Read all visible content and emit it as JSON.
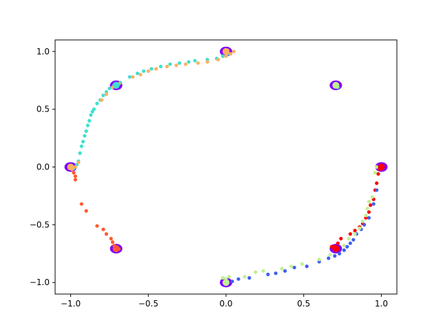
{
  "chart_data": {
    "type": "scatter",
    "title": "",
    "xlabel": "",
    "ylabel": "",
    "xlim": [
      -1.1,
      1.1
    ],
    "ylim": [
      -1.1,
      1.1
    ],
    "grid": false,
    "legend": "none",
    "x_ticks": [
      -1.0,
      -0.5,
      0.0,
      0.5,
      1.0
    ],
    "y_ticks": [
      -1.0,
      -0.5,
      0.0,
      0.5,
      1.0
    ],
    "x_tick_labels": [
      "−1.0",
      "−0.5",
      "0.0",
      "0.5",
      "1.0"
    ],
    "y_tick_labels": [
      "−1.0",
      "−0.5",
      "0.0",
      "0.5",
      "1.0"
    ],
    "clusters": [
      {
        "color": "#8000ff",
        "points": [
          [
            -1.0,
            0.0
          ],
          [
            -0.707,
            0.707
          ],
          [
            0.0,
            1.0
          ],
          [
            0.707,
            0.707
          ],
          [
            1.0,
            0.0
          ],
          [
            0.707,
            -0.707
          ],
          [
            0.0,
            -1.0
          ],
          [
            -0.707,
            -0.707
          ]
        ]
      }
    ],
    "series": [
      {
        "color": "#40e0d0",
        "points": [
          [
            -0.98,
            -0.01
          ],
          [
            -0.96,
            0.02
          ],
          [
            -0.95,
            0.05
          ],
          [
            -0.94,
            0.12
          ],
          [
            -0.93,
            0.18
          ],
          [
            -0.92,
            0.22
          ],
          [
            -0.91,
            0.27
          ],
          [
            -0.9,
            0.31
          ],
          [
            -0.89,
            0.36
          ],
          [
            -0.88,
            0.4
          ],
          [
            -0.87,
            0.45
          ],
          [
            -0.86,
            0.48
          ],
          [
            -0.85,
            0.5
          ],
          [
            -0.83,
            0.55
          ],
          [
            -0.81,
            0.58
          ],
          [
            -0.79,
            0.62
          ],
          [
            -0.77,
            0.65
          ],
          [
            -0.75,
            0.68
          ],
          [
            -0.72,
            0.71
          ],
          [
            -0.68,
            0.73
          ],
          [
            -0.62,
            0.78
          ],
          [
            -0.57,
            0.81
          ],
          [
            -0.53,
            0.83
          ],
          [
            -0.48,
            0.85
          ],
          [
            -0.42,
            0.87
          ],
          [
            -0.36,
            0.89
          ],
          [
            -0.3,
            0.9
          ],
          [
            -0.24,
            0.91
          ],
          [
            -0.2,
            0.92
          ],
          [
            -0.12,
            0.93
          ],
          [
            -0.06,
            0.94
          ],
          [
            -0.02,
            0.96
          ],
          [
            0.01,
            0.98
          ],
          [
            0.71,
            0.7
          ],
          [
            0.7,
            0.71
          ],
          [
            0.72,
            0.69
          ]
        ]
      },
      {
        "color": "#ffb060",
        "points": [
          [
            -0.99,
            -0.02
          ],
          [
            -0.97,
            0.0
          ],
          [
            -0.95,
            0.04
          ],
          [
            -0.8,
            0.58
          ],
          [
            -0.77,
            0.63
          ],
          [
            -0.73,
            0.69
          ],
          [
            -0.69,
            0.72
          ],
          [
            -0.6,
            0.78
          ],
          [
            -0.55,
            0.8
          ],
          [
            -0.5,
            0.83
          ],
          [
            -0.45,
            0.85
          ],
          [
            -0.38,
            0.87
          ],
          [
            -0.32,
            0.88
          ],
          [
            -0.26,
            0.89
          ],
          [
            -0.18,
            0.9
          ],
          [
            -0.12,
            0.91
          ],
          [
            -0.05,
            0.93
          ],
          [
            0.0,
            0.96
          ],
          [
            0.03,
            0.98
          ],
          [
            0.05,
            1.0
          ],
          [
            0.01,
            1.01
          ]
        ]
      },
      {
        "color": "#ff5a30",
        "points": [
          [
            -0.98,
            -0.05
          ],
          [
            -0.97,
            -0.08
          ],
          [
            -0.97,
            -0.11
          ],
          [
            -0.93,
            -0.32
          ],
          [
            -0.9,
            -0.38
          ],
          [
            -0.83,
            -0.51
          ],
          [
            -0.79,
            -0.54
          ],
          [
            -0.77,
            -0.58
          ],
          [
            -0.74,
            -0.62
          ],
          [
            -0.73,
            -0.65
          ],
          [
            -0.72,
            -0.68
          ],
          [
            -0.7,
            -0.7
          ],
          [
            -0.71,
            -0.72
          ],
          [
            -0.69,
            -0.71
          ]
        ]
      },
      {
        "color": "#ff0000",
        "points": [
          [
            0.68,
            -0.69
          ],
          [
            0.7,
            -0.69
          ],
          [
            0.72,
            -0.66
          ],
          [
            0.74,
            -0.62
          ],
          [
            0.8,
            -0.58
          ],
          [
            0.83,
            -0.55
          ],
          [
            0.86,
            -0.52
          ],
          [
            0.88,
            -0.49
          ],
          [
            0.9,
            -0.44
          ],
          [
            0.92,
            -0.39
          ],
          [
            0.93,
            -0.33
          ],
          [
            0.95,
            -0.28
          ],
          [
            0.96,
            -0.2
          ],
          [
            0.97,
            -0.14
          ],
          [
            0.98,
            -0.06
          ],
          [
            0.99,
            -0.02
          ],
          [
            1.0,
            0.0
          ],
          [
            1.01,
            0.01
          ]
        ]
      },
      {
        "color": "#4060f0",
        "points": [
          [
            0.04,
            -0.99
          ],
          [
            0.08,
            -0.97
          ],
          [
            0.15,
            -0.96
          ],
          [
            0.27,
            -0.93
          ],
          [
            0.32,
            -0.92
          ],
          [
            0.38,
            -0.9
          ],
          [
            0.44,
            -0.87
          ],
          [
            0.52,
            -0.86
          ],
          [
            0.6,
            -0.82
          ],
          [
            0.66,
            -0.79
          ],
          [
            0.7,
            -0.77
          ],
          [
            0.73,
            -0.75
          ],
          [
            0.76,
            -0.72
          ],
          [
            0.78,
            -0.69
          ],
          [
            0.8,
            -0.66
          ],
          [
            0.82,
            -0.63
          ],
          [
            0.84,
            -0.58
          ],
          [
            0.87,
            -0.54
          ],
          [
            0.89,
            -0.5
          ],
          [
            0.92,
            -0.44
          ],
          [
            0.95,
            -0.32
          ],
          [
            0.97,
            -0.2
          ],
          [
            0.99,
            0.0
          ]
        ]
      },
      {
        "color": "#c0f090",
        "points": [
          [
            0.0,
            -0.97
          ],
          [
            -0.02,
            -0.96
          ],
          [
            0.02,
            -0.95
          ],
          [
            0.12,
            -0.95
          ],
          [
            0.19,
            -0.91
          ],
          [
            0.24,
            -0.9
          ],
          [
            0.36,
            -0.88
          ],
          [
            0.42,
            -0.86
          ],
          [
            0.49,
            -0.84
          ],
          [
            0.6,
            -0.8
          ],
          [
            0.67,
            -0.76
          ],
          [
            0.71,
            -0.72
          ],
          [
            0.76,
            -0.68
          ],
          [
            0.79,
            -0.62
          ],
          [
            0.83,
            -0.58
          ],
          [
            0.86,
            -0.53
          ],
          [
            0.88,
            -0.47
          ],
          [
            0.9,
            -0.42
          ],
          [
            0.91,
            -0.36
          ],
          [
            0.92,
            -0.3
          ],
          [
            0.94,
            -0.26
          ],
          [
            0.96,
            -0.05
          ],
          [
            0.97,
            0.0
          ],
          [
            0.71,
            0.7
          ]
        ]
      }
    ]
  }
}
